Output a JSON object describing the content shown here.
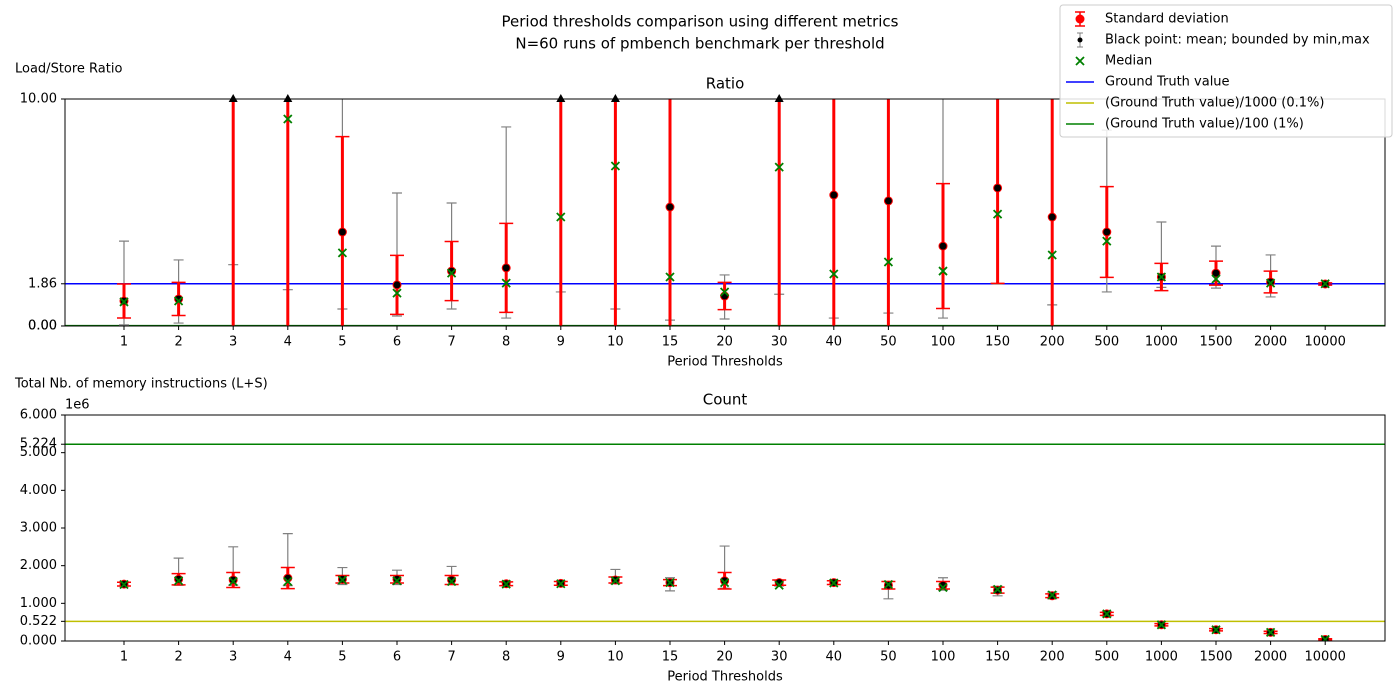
{
  "suptitle": [
    "Period thresholds comparison using different metrics",
    "N=60 runs of pmbench benchmark per threshold"
  ],
  "legend": [
    {
      "name": "Standard deviation",
      "color": "#ff0000",
      "marker": "std"
    },
    {
      "name": "Black point: mean; bounded by min,max",
      "color": "#808080",
      "marker": "minmax"
    },
    {
      "name": "Median",
      "color": "#008000",
      "marker": "x"
    },
    {
      "name": "Ground Truth value",
      "color": "#0000ff",
      "marker": "line"
    },
    {
      "name": "(Ground Truth value)/1000 (0.1%)",
      "color": "#bfbf00",
      "marker": "line"
    },
    {
      "name": "(Ground Truth value)/100 (1%)",
      "color": "#008000",
      "marker": "line"
    }
  ],
  "chart_data": [
    {
      "type": "errorbar",
      "title": "Ratio",
      "ylabel": "Load/Store Ratio",
      "xlabel": "Period Thresholds",
      "categories": [
        "1",
        "2",
        "3",
        "4",
        "5",
        "6",
        "7",
        "8",
        "9",
        "10",
        "15",
        "20",
        "30",
        "40",
        "50",
        "100",
        "150",
        "200",
        "500",
        "1000",
        "1500",
        "2000",
        "10000"
      ],
      "mean": [
        1.1,
        1.19,
        20,
        20,
        4.14,
        1.81,
        2.42,
        2.56,
        20,
        20,
        5.24,
        1.32,
        20,
        5.77,
        5.51,
        3.52,
        6.08,
        4.8,
        4.14,
        2.16,
        2.33,
        1.94,
        1.85
      ],
      "std": [
        0.75,
        0.73,
        25,
        25,
        4.2,
        1.3,
        1.3,
        1.96,
        25,
        25,
        6,
        0.6,
        25,
        7,
        6,
        2.75,
        4.2,
        6,
        2.0,
        0.6,
        0.53,
        0.48,
        0.05
      ],
      "min": [
        0.05,
        0.13,
        2.7,
        1.6,
        0.75,
        0.44,
        0.75,
        0.35,
        1.5,
        0.75,
        0.26,
        0.31,
        1.4,
        0.35,
        0.57,
        0.35,
        1.85,
        0.93,
        1.5,
        1.7,
        1.67,
        1.28,
        1.8
      ],
      "max": [
        3.74,
        2.91,
        50,
        50,
        12,
        5.86,
        5.42,
        8.77,
        50,
        50,
        15,
        2.25,
        50,
        20,
        20,
        12,
        15,
        15,
        8.63,
        4.58,
        3.52,
        3.13,
        1.92
      ],
      "median": [
        1.06,
        1.1,
        11,
        9.12,
        3.22,
        1.45,
        2.33,
        1.89,
        4.8,
        7.05,
        2.16,
        1.5,
        7.0,
        2.29,
        2.82,
        2.42,
        4.93,
        3.13,
        3.74,
        2.16,
        2.07,
        1.89,
        1.86
      ],
      "ylim": [
        0,
        10
      ],
      "yticks": [
        {
          "value": 0,
          "label": "0.00"
        },
        {
          "value": 0.00186,
          "label": "0.00"
        },
        1.86,
        {
          "value": 10,
          "label": "10.00"
        }
      ],
      "hlines": [
        {
          "value": 1.86,
          "color": "#0000ff"
        },
        {
          "value": 0.00186,
          "color": "#bfbf00"
        },
        {
          "value": 0.0186,
          "color": "#008000"
        }
      ]
    },
    {
      "type": "errorbar",
      "title": "Count",
      "ylabel": "Total Nb. of memory instructions (L+S)",
      "xlabel": "Period Thresholds",
      "offset_label": "1e6",
      "categories": [
        "1",
        "2",
        "3",
        "4",
        "5",
        "6",
        "7",
        "8",
        "9",
        "10",
        "15",
        "20",
        "30",
        "40",
        "50",
        "100",
        "150",
        "200",
        "500",
        "1000",
        "1500",
        "2000",
        "10000"
      ],
      "mean": [
        1.51,
        1.64,
        1.62,
        1.67,
        1.64,
        1.64,
        1.62,
        1.52,
        1.53,
        1.62,
        1.55,
        1.6,
        1.55,
        1.55,
        1.48,
        1.48,
        1.35,
        1.2,
        0.72,
        0.43,
        0.3,
        0.23,
        0.04
      ],
      "std": [
        0.05,
        0.15,
        0.2,
        0.28,
        0.1,
        0.1,
        0.12,
        0.05,
        0.05,
        0.08,
        0.08,
        0.22,
        0.07,
        0.05,
        0.1,
        0.1,
        0.08,
        0.05,
        0.04,
        0.03,
        0.03,
        0.03,
        0.02
      ],
      "min": [
        1.46,
        1.48,
        1.48,
        1.47,
        1.5,
        1.5,
        1.5,
        1.47,
        1.48,
        1.52,
        1.33,
        1.4,
        1.46,
        1.5,
        1.12,
        1.35,
        1.2,
        1.12,
        0.66,
        0.4,
        0.27,
        0.2,
        0.01
      ],
      "max": [
        1.56,
        2.2,
        2.5,
        2.85,
        1.95,
        1.88,
        1.98,
        1.56,
        1.58,
        1.9,
        1.68,
        2.52,
        1.6,
        1.6,
        1.58,
        1.68,
        1.45,
        1.3,
        0.78,
        0.46,
        0.33,
        0.26,
        0.06
      ],
      "median": [
        1.5,
        1.6,
        1.58,
        1.58,
        1.62,
        1.6,
        1.58,
        1.51,
        1.52,
        1.6,
        1.55,
        1.55,
        1.48,
        1.54,
        1.5,
        1.42,
        1.37,
        1.22,
        0.72,
        0.43,
        0.3,
        0.23,
        0.04
      ],
      "ylim": [
        0,
        6
      ],
      "yticks": [
        {
          "value": 0,
          "label": "0.000"
        },
        0.522,
        {
          "value": 1,
          "label": "1.000"
        },
        {
          "value": 2,
          "label": "2.000"
        },
        {
          "value": 3,
          "label": "3.000"
        },
        {
          "value": 4,
          "label": "4.000"
        },
        {
          "value": 5,
          "label": "5.000"
        },
        5.224,
        {
          "value": 6,
          "label": "6.000"
        }
      ],
      "hlines": [
        {
          "value": 0.522,
          "color": "#bfbf00"
        },
        {
          "value": 5.224,
          "color": "#008000"
        }
      ]
    }
  ]
}
